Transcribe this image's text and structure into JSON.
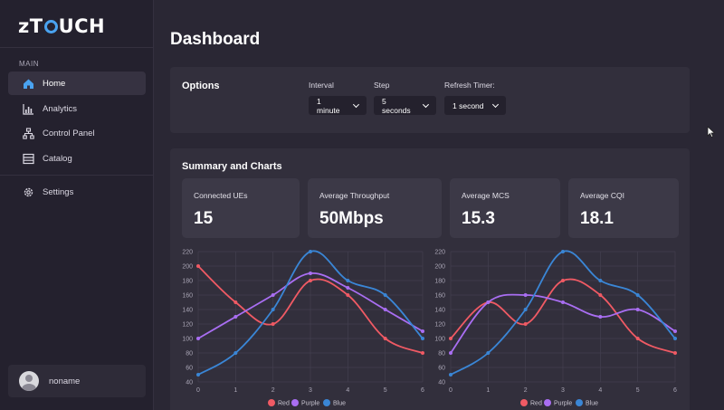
{
  "app": {
    "logo_pre": "z",
    "logo_o": "O",
    "logo_post": "UCH"
  },
  "sidebar": {
    "section_label": "MAIN",
    "items": [
      {
        "label": "Home",
        "icon": "home-icon",
        "active": true
      },
      {
        "label": "Analytics",
        "icon": "bar-chart-icon",
        "active": false
      },
      {
        "label": "Control Panel",
        "icon": "sitemap-icon",
        "active": false
      },
      {
        "label": "Catalog",
        "icon": "catalog-icon",
        "active": false
      }
    ],
    "settings": {
      "label": "Settings",
      "icon": "gear-icon"
    },
    "user": {
      "name": "noname"
    }
  },
  "page": {
    "title": "Dashboard"
  },
  "options": {
    "title": "Options",
    "interval": {
      "label": "Interval",
      "value": "1 minute"
    },
    "step": {
      "label": "Step",
      "value": "5 seconds"
    },
    "refresh": {
      "label": "Refresh Timer:",
      "value": "1 second"
    }
  },
  "summary": {
    "title": "Summary and Charts",
    "stats": [
      {
        "label": "Connected UEs",
        "value": "15"
      },
      {
        "label": "Average Throughput",
        "value": "50Mbps"
      },
      {
        "label": "Average MCS",
        "value": "15.3"
      },
      {
        "label": "Average CQI",
        "value": "18.1"
      }
    ]
  },
  "colors": {
    "red": "#f05a64",
    "purple": "#a96ef2",
    "blue": "#3a86d6",
    "accent": "#4aa3f0"
  },
  "chart_data": [
    {
      "type": "line",
      "x": [
        0,
        1,
        2,
        3,
        4,
        5,
        6
      ],
      "ylim": [
        40,
        220
      ],
      "yticks": [
        40,
        60,
        80,
        100,
        120,
        140,
        160,
        180,
        200,
        220
      ],
      "grid": true,
      "legend_position": "bottom",
      "series": [
        {
          "name": "Red",
          "color": "#f05a64",
          "values": [
            200,
            150,
            120,
            180,
            160,
            100,
            80
          ]
        },
        {
          "name": "Purple",
          "color": "#a96ef2",
          "values": [
            100,
            130,
            160,
            190,
            170,
            140,
            110
          ]
        },
        {
          "name": "Blue",
          "color": "#3a86d6",
          "values": [
            50,
            80,
            140,
            220,
            180,
            160,
            100
          ]
        }
      ]
    },
    {
      "type": "line",
      "x": [
        0,
        1,
        2,
        3,
        4,
        5,
        6
      ],
      "ylim": [
        40,
        220
      ],
      "yticks": [
        40,
        60,
        80,
        100,
        120,
        140,
        160,
        180,
        200,
        220
      ],
      "grid": true,
      "legend_position": "bottom",
      "series": [
        {
          "name": "Red",
          "color": "#f05a64",
          "values": [
            100,
            150,
            120,
            180,
            160,
            100,
            80
          ]
        },
        {
          "name": "Purple",
          "color": "#a96ef2",
          "values": [
            80,
            150,
            160,
            150,
            130,
            140,
            110
          ]
        },
        {
          "name": "Blue",
          "color": "#3a86d6",
          "values": [
            50,
            80,
            140,
            220,
            180,
            160,
            100
          ]
        }
      ]
    }
  ]
}
